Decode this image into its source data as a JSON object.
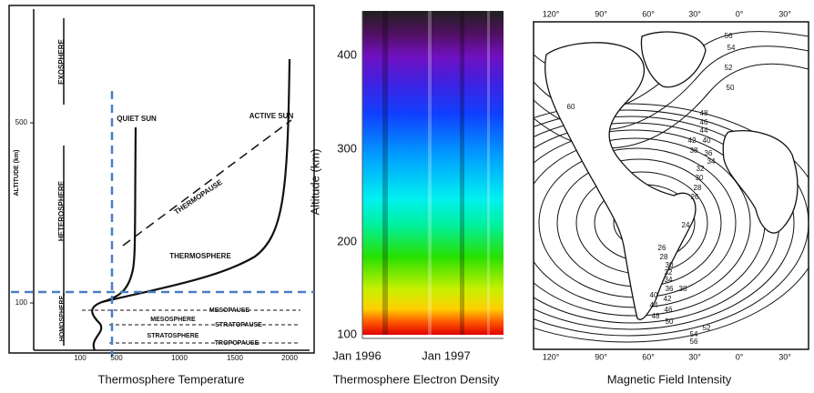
{
  "panels": [
    {
      "caption": "Thermosphere Temperature",
      "labels": [
        "EXOSPHERE",
        "ALTITUDE (km)",
        "QUIET SUN",
        "ACTIVE SUN",
        "THERMOPAUSE",
        "HETEROSPHERE",
        "THERMOSPHERE",
        "MESOPAUSE",
        "MESOSPHERE",
        "STRATOPAUSE",
        "STRATOSPHERE",
        "TROPOPAUSE",
        "HOMOSPHERE"
      ],
      "y_ticks": [
        "500",
        "100"
      ],
      "x_ticks": [
        "100",
        "500",
        "1000",
        "1500",
        "2000"
      ]
    },
    {
      "caption": "Thermosphere Electron Density",
      "y_label": "Altitude (km)",
      "y_ticks": [
        "400",
        "300",
        "200",
        "100"
      ],
      "x_ticks": [
        "Jan 1996",
        "Jan 1997"
      ]
    },
    {
      "caption": "Magnetic Field Intensity",
      "top_ticks": [
        "120°",
        "90°",
        "60°",
        "30°",
        "0°",
        "30°"
      ],
      "bottom_ticks": [
        "120°",
        "90°",
        "60°",
        "30°",
        "0°",
        "30°"
      ],
      "contour_labels": [
        "56",
        "54",
        "52",
        "50",
        "60",
        "48",
        "46",
        "44",
        "42",
        "40",
        "38",
        "36",
        "34",
        "32",
        "30",
        "28",
        "26",
        "24",
        "26",
        "28",
        "30",
        "32",
        "34",
        "36",
        "38",
        "40",
        "42",
        "44",
        "46",
        "48",
        "50",
        "52",
        "54",
        "56"
      ]
    }
  ]
}
